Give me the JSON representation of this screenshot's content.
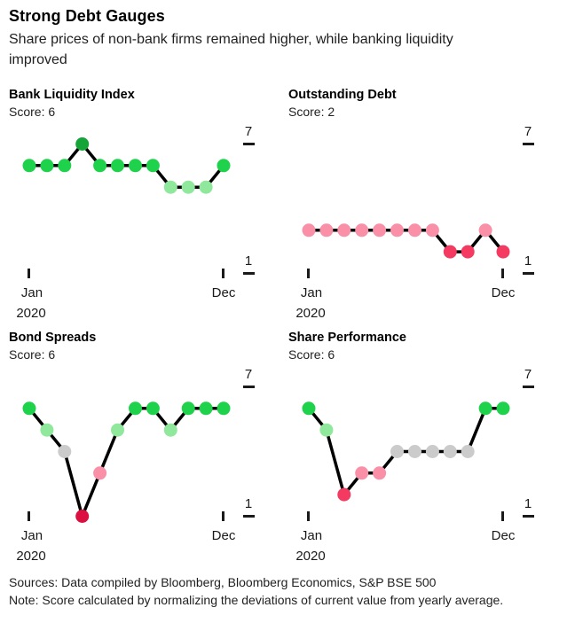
{
  "header": {
    "title": "Strong Debt Gauges",
    "subtitle": "Share prices of non-bank firms remained higher, while banking liquidity improved"
  },
  "style": {
    "line_color": "#000000",
    "dot_radius": 7.5,
    "line_width": 3.5,
    "dot_colors": {
      "1": "#dc1040",
      "2": "#f43a60",
      "3": "#f990a7",
      "4": "#cbcbcb",
      "5": "#90e89c",
      "6": "#1fd24b",
      "7": "#14a437"
    },
    "axis_color": "#1a1a1a"
  },
  "chart_data": [
    {
      "type": "line",
      "title": "Bank Liquidity Index",
      "score_label": "Score: 6",
      "score": 6,
      "x": [
        "Jan",
        "Feb",
        "Mar",
        "Apr",
        "May",
        "Jun",
        "Jul",
        "Aug",
        "Sep",
        "Oct",
        "Nov",
        "Dec"
      ],
      "values": [
        6,
        6,
        6,
        7,
        6,
        6,
        6,
        6,
        5,
        5,
        5,
        6
      ],
      "ylim": [
        1,
        7
      ],
      "yticklabels": [
        "7",
        "1"
      ],
      "xticklabels": [
        "Jan",
        "Dec"
      ],
      "x_axis_year": "2020",
      "grid": "off",
      "legend": "none"
    },
    {
      "type": "line",
      "title": "Outstanding Debt",
      "score_label": "Score: 2",
      "score": 2,
      "x": [
        "Jan",
        "Feb",
        "Mar",
        "Apr",
        "May",
        "Jun",
        "Jul",
        "Aug",
        "Sep",
        "Oct",
        "Nov",
        "Dec"
      ],
      "values": [
        3,
        3,
        3,
        3,
        3,
        3,
        3,
        3,
        2,
        2,
        3,
        2
      ],
      "ylim": [
        1,
        7
      ],
      "yticklabels": [
        "7",
        "1"
      ],
      "xticklabels": [
        "Jan",
        "Dec"
      ],
      "x_axis_year": "2020",
      "grid": "off",
      "legend": "none"
    },
    {
      "type": "line",
      "title": "Bond Spreads",
      "score_label": "Score: 6",
      "score": 6,
      "x": [
        "Jan",
        "Feb",
        "Mar",
        "Apr",
        "May",
        "Jun",
        "Jul",
        "Aug",
        "Sep",
        "Oct",
        "Nov",
        "Dec"
      ],
      "values": [
        6,
        5,
        4,
        1,
        3,
        5,
        6,
        6,
        5,
        6,
        6,
        6
      ],
      "ylim": [
        1,
        7
      ],
      "yticklabels": [
        "7",
        "1"
      ],
      "xticklabels": [
        "Jan",
        "Dec"
      ],
      "x_axis_year": "2020",
      "grid": "off",
      "legend": "none"
    },
    {
      "type": "line",
      "title": "Share Performance",
      "score_label": "Score: 6",
      "score": 6,
      "x": [
        "Jan",
        "Feb",
        "Mar",
        "Apr",
        "May",
        "Jun",
        "Jul",
        "Aug",
        "Sep",
        "Oct",
        "Nov",
        "Dec"
      ],
      "values": [
        6,
        5,
        2,
        3,
        3,
        4,
        4,
        4,
        4,
        4,
        6,
        6
      ],
      "ylim": [
        1,
        7
      ],
      "yticklabels": [
        "7",
        "1"
      ],
      "xticklabels": [
        "Jan",
        "Dec"
      ],
      "x_axis_year": "2020",
      "grid": "off",
      "legend": "none"
    }
  ],
  "footer": {
    "sources": "Sources: Data compiled by Bloomberg, Bloomberg Economics, S&P BSE 500",
    "note": "Note: Score calculated by normalizing the deviations of current value from yearly average."
  }
}
